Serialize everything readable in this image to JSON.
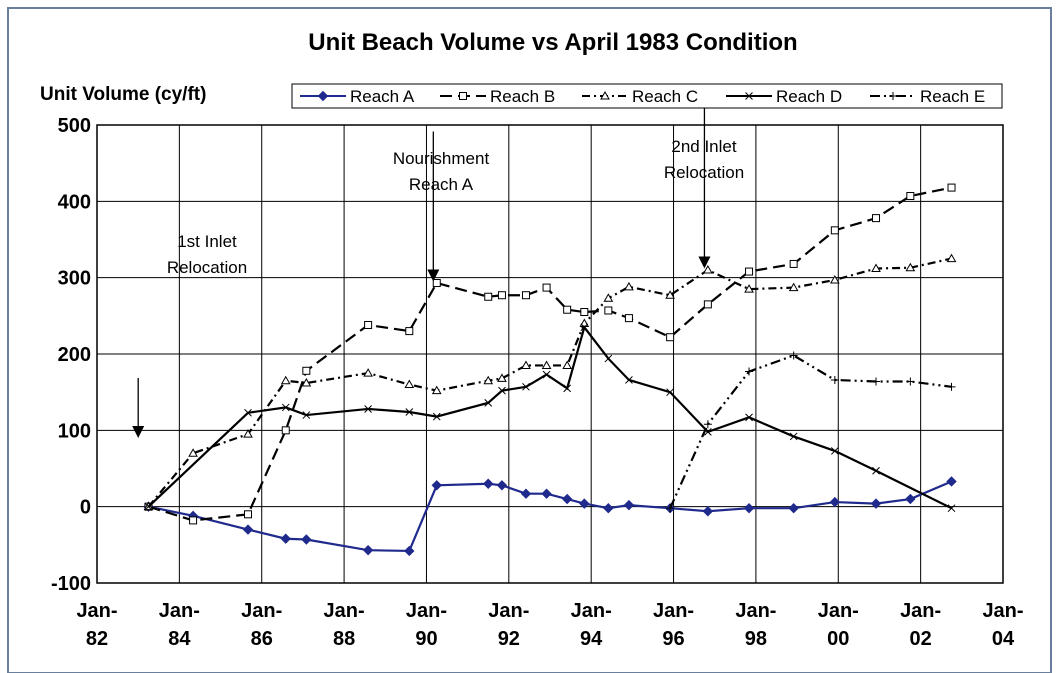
{
  "chart_data": {
    "type": "line",
    "title": "Unit Beach Volume vs April 1983 Condition",
    "y_label": "Unit Volume (cy/ft)",
    "xlim": [
      "1982-01",
      "2004-01"
    ],
    "xticks": [
      {
        "value": "1982-01",
        "label": "Jan-82"
      },
      {
        "value": "1984-01",
        "label": "Jan-84"
      },
      {
        "value": "1986-01",
        "label": "Jan-86"
      },
      {
        "value": "1988-01",
        "label": "Jan-88"
      },
      {
        "value": "1990-01",
        "label": "Jan-90"
      },
      {
        "value": "1992-01",
        "label": "Jan-92"
      },
      {
        "value": "1994-01",
        "label": "Jan-94"
      },
      {
        "value": "1996-01",
        "label": "Jan-96"
      },
      {
        "value": "1998-01",
        "label": "Jan-98"
      },
      {
        "value": "2000-01",
        "label": "Jan-00"
      },
      {
        "value": "2002-01",
        "label": "Jan-02"
      },
      {
        "value": "2004-01",
        "label": "Jan-04"
      }
    ],
    "ylim": [
      -100,
      500
    ],
    "yticks": [
      -100,
      0,
      100,
      200,
      300,
      400,
      500
    ],
    "grid": true,
    "legend": "top",
    "series": [
      {
        "name": "Reach A",
        "color": "#1f2a8c",
        "dash": "",
        "marker": "diamond",
        "x": [
          "1983-04",
          "1984-05",
          "1985-09",
          "1986-08",
          "1987-02",
          "1988-08",
          "1989-08",
          "1990-04",
          "1991-07",
          "1991-11",
          "1992-06",
          "1992-12",
          "1993-06",
          "1993-11",
          "1994-06",
          "1994-12",
          "1995-12",
          "1996-11",
          "1997-11",
          "1998-12",
          "1999-12",
          "2000-12",
          "2001-10",
          "2002-10"
        ],
        "values": [
          0,
          -12,
          -30,
          -42,
          -43,
          -57,
          -58,
          28,
          30,
          28,
          17,
          17,
          10,
          4,
          -2,
          2,
          -2,
          -6,
          -2,
          -2,
          6,
          4,
          10,
          33
        ]
      },
      {
        "name": "Reach B",
        "color": "#000000",
        "dash": "12 6",
        "marker": "square",
        "x": [
          "1983-04",
          "1984-05",
          "1985-09",
          "1986-08",
          "1987-02",
          "1988-08",
          "1989-08",
          "1990-04",
          "1991-07",
          "1991-11",
          "1992-06",
          "1992-12",
          "1993-06",
          "1993-11",
          "1994-06",
          "1994-12",
          "1995-12",
          "1996-11",
          "1997-11",
          "1998-12",
          "1999-12",
          "2000-12",
          "2001-10",
          "2002-10"
        ],
        "values": [
          0,
          -18,
          -10,
          100,
          178,
          238,
          230,
          293,
          275,
          277,
          277,
          287,
          258,
          255,
          257,
          247,
          222,
          265,
          308,
          318,
          362,
          378,
          407,
          418
        ]
      },
      {
        "name": "Reach C",
        "color": "#000000",
        "dash": "8 4 2 4",
        "marker": "triangle",
        "x": [
          "1983-04",
          "1984-05",
          "1985-09",
          "1986-08",
          "1987-02",
          "1988-08",
          "1989-08",
          "1990-04",
          "1991-07",
          "1991-11",
          "1992-06",
          "1992-12",
          "1993-06",
          "1993-11",
          "1994-06",
          "1994-12",
          "1995-12",
          "1996-11",
          "1997-11",
          "1998-12",
          "1999-12",
          "2000-12",
          "2001-10",
          "2002-10"
        ],
        "values": [
          0,
          70,
          95,
          165,
          162,
          175,
          160,
          152,
          165,
          168,
          185,
          185,
          185,
          240,
          273,
          288,
          277,
          310,
          285,
          287,
          297,
          312,
          313,
          325
        ]
      },
      {
        "name": "Reach D",
        "color": "#000000",
        "dash": "",
        "marker": "x",
        "x": [
          "1983-04",
          "1985-09",
          "1986-08",
          "1987-02",
          "1988-08",
          "1989-08",
          "1990-04",
          "1991-07",
          "1991-11",
          "1992-06",
          "1992-12",
          "1993-06",
          "1993-11",
          "1994-06",
          "1994-12",
          "1995-12",
          "1996-11",
          "1997-11",
          "1998-12",
          "1999-12",
          "2000-12",
          "2002-10"
        ],
        "values": [
          0,
          123,
          130,
          120,
          128,
          124,
          118,
          136,
          152,
          157,
          173,
          155,
          235,
          194,
          166,
          150,
          98,
          117,
          92,
          73,
          47,
          -2
        ]
      },
      {
        "name": "Reach E",
        "color": "#000000",
        "dash": "10 4 2 4 2 4",
        "marker": "plus",
        "x": [
          "1995-12",
          "1996-11",
          "1997-11",
          "1998-12",
          "1999-12",
          "2000-12",
          "2001-10",
          "2002-10"
        ],
        "values": [
          -2,
          108,
          177,
          198,
          166,
          164,
          164,
          157
        ]
      }
    ],
    "annotations": [
      {
        "lines": [
          "1st Inlet",
          "Relocation"
        ],
        "x": "1983-01",
        "y": 90
      },
      {
        "lines": [
          "Nourishment",
          "Reach A"
        ],
        "x": "1990-03",
        "y": 295
      },
      {
        "lines": [
          "2nd Inlet",
          "Relocation"
        ],
        "x": "1996-10",
        "y": 312
      }
    ]
  }
}
